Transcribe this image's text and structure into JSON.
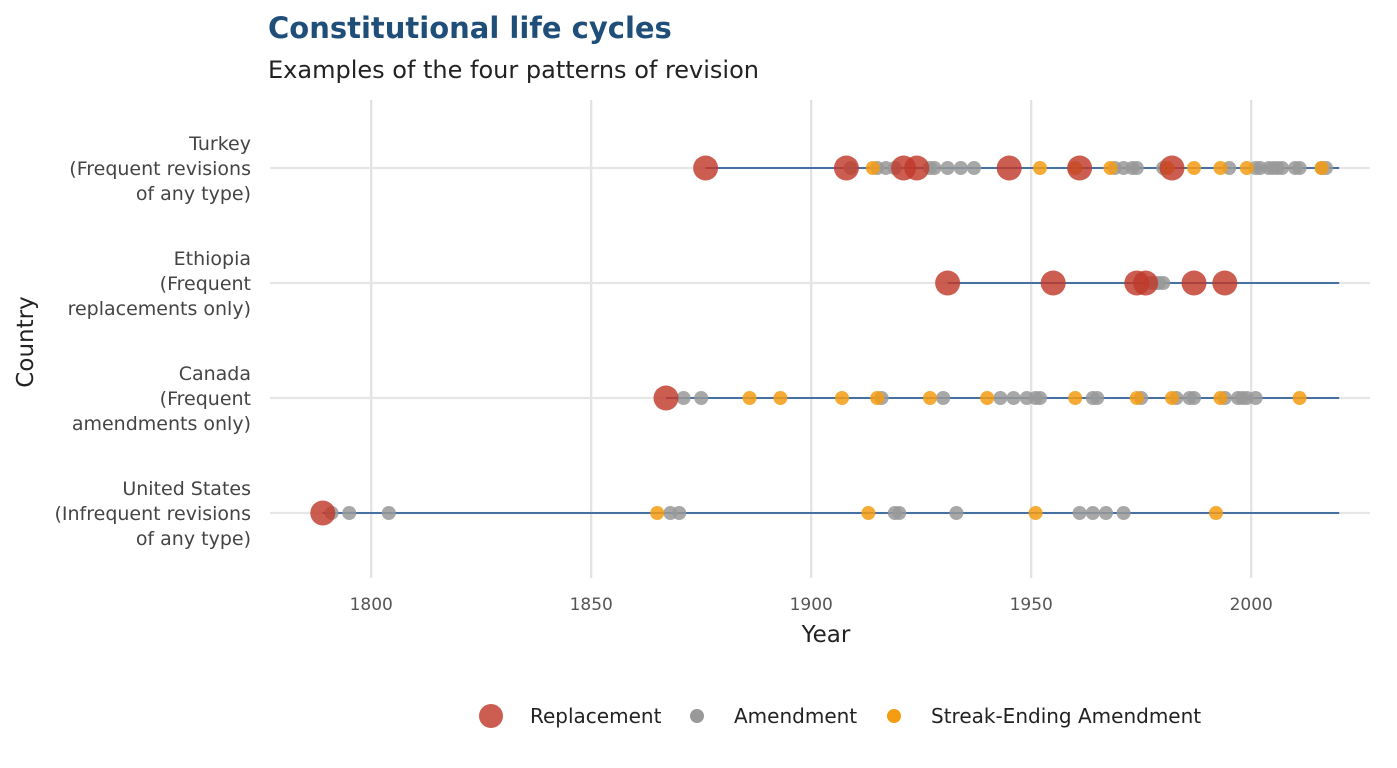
{
  "chart_data": {
    "type": "scatter",
    "title": "Constitutional life cycles",
    "subtitle": "Examples of the four patterns of revision",
    "xlabel": "Year",
    "ylabel": "Country",
    "xlim": [
      1777,
      2027
    ],
    "x_ticks": [
      1800,
      1850,
      1900,
      1950,
      2000
    ],
    "grid": true,
    "legend_position": "bottom",
    "legend": [
      {
        "key": "replacement",
        "label": "Replacement"
      },
      {
        "key": "amendment",
        "label": "Amendment"
      },
      {
        "key": "streak",
        "label": "Streak-Ending Amendment"
      }
    ],
    "colors": {
      "replacement": "#c0392b",
      "amendment": "#999999",
      "streak": "#f39c12",
      "lifeline": "#2f5f98",
      "title": "#1f4e79"
    },
    "countries": [
      {
        "label_lines": [
          "Turkey",
          "(Frequent revisions",
          "of any type)"
        ],
        "line_start": 1876,
        "line_end": 2020,
        "replacement": [
          1876,
          1908,
          1921,
          1924,
          1945,
          1961,
          1982
        ],
        "amendment": [
          1909,
          1915,
          1917,
          1919,
          1927,
          1928,
          1931,
          1934,
          1937,
          1969,
          1971,
          1973,
          1974,
          1980,
          1995,
          2001,
          2002,
          2004,
          2005,
          2006,
          2007,
          2010,
          2011,
          2016,
          2017
        ],
        "streak": [
          1914,
          1952,
          1960,
          1968,
          1981,
          1987,
          1993,
          1999,
          2016
        ]
      },
      {
        "label_lines": [
          "Ethiopia",
          "(Frequent",
          "replacements only)"
        ],
        "line_start": 1931,
        "line_end": 2020,
        "replacement": [
          1931,
          1955,
          1974,
          1976,
          1987,
          1994
        ],
        "amendment": [
          1977,
          1978,
          1979,
          1980
        ],
        "streak": []
      },
      {
        "label_lines": [
          "Canada",
          "(Frequent",
          "amendments only)"
        ],
        "line_start": 1867,
        "line_end": 2020,
        "replacement": [
          1867
        ],
        "amendment": [
          1871,
          1875,
          1916,
          1930,
          1943,
          1946,
          1949,
          1951,
          1952,
          1964,
          1965,
          1975,
          1983,
          1986,
          1987,
          1994,
          1997,
          1998,
          1999,
          2001
        ],
        "streak": [
          1886,
          1893,
          1907,
          1915,
          1927,
          1940,
          1960,
          1974,
          1982,
          1993,
          2011
        ]
      },
      {
        "label_lines": [
          "United States",
          "(Infrequent revisions",
          "of any type)"
        ],
        "line_start": 1789,
        "line_end": 2020,
        "replacement": [
          1789
        ],
        "amendment": [
          1791,
          1795,
          1804,
          1868,
          1870,
          1919,
          1920,
          1933,
          1961,
          1964,
          1967,
          1971
        ],
        "streak": [
          1865,
          1913,
          1951,
          1992
        ]
      }
    ]
  }
}
